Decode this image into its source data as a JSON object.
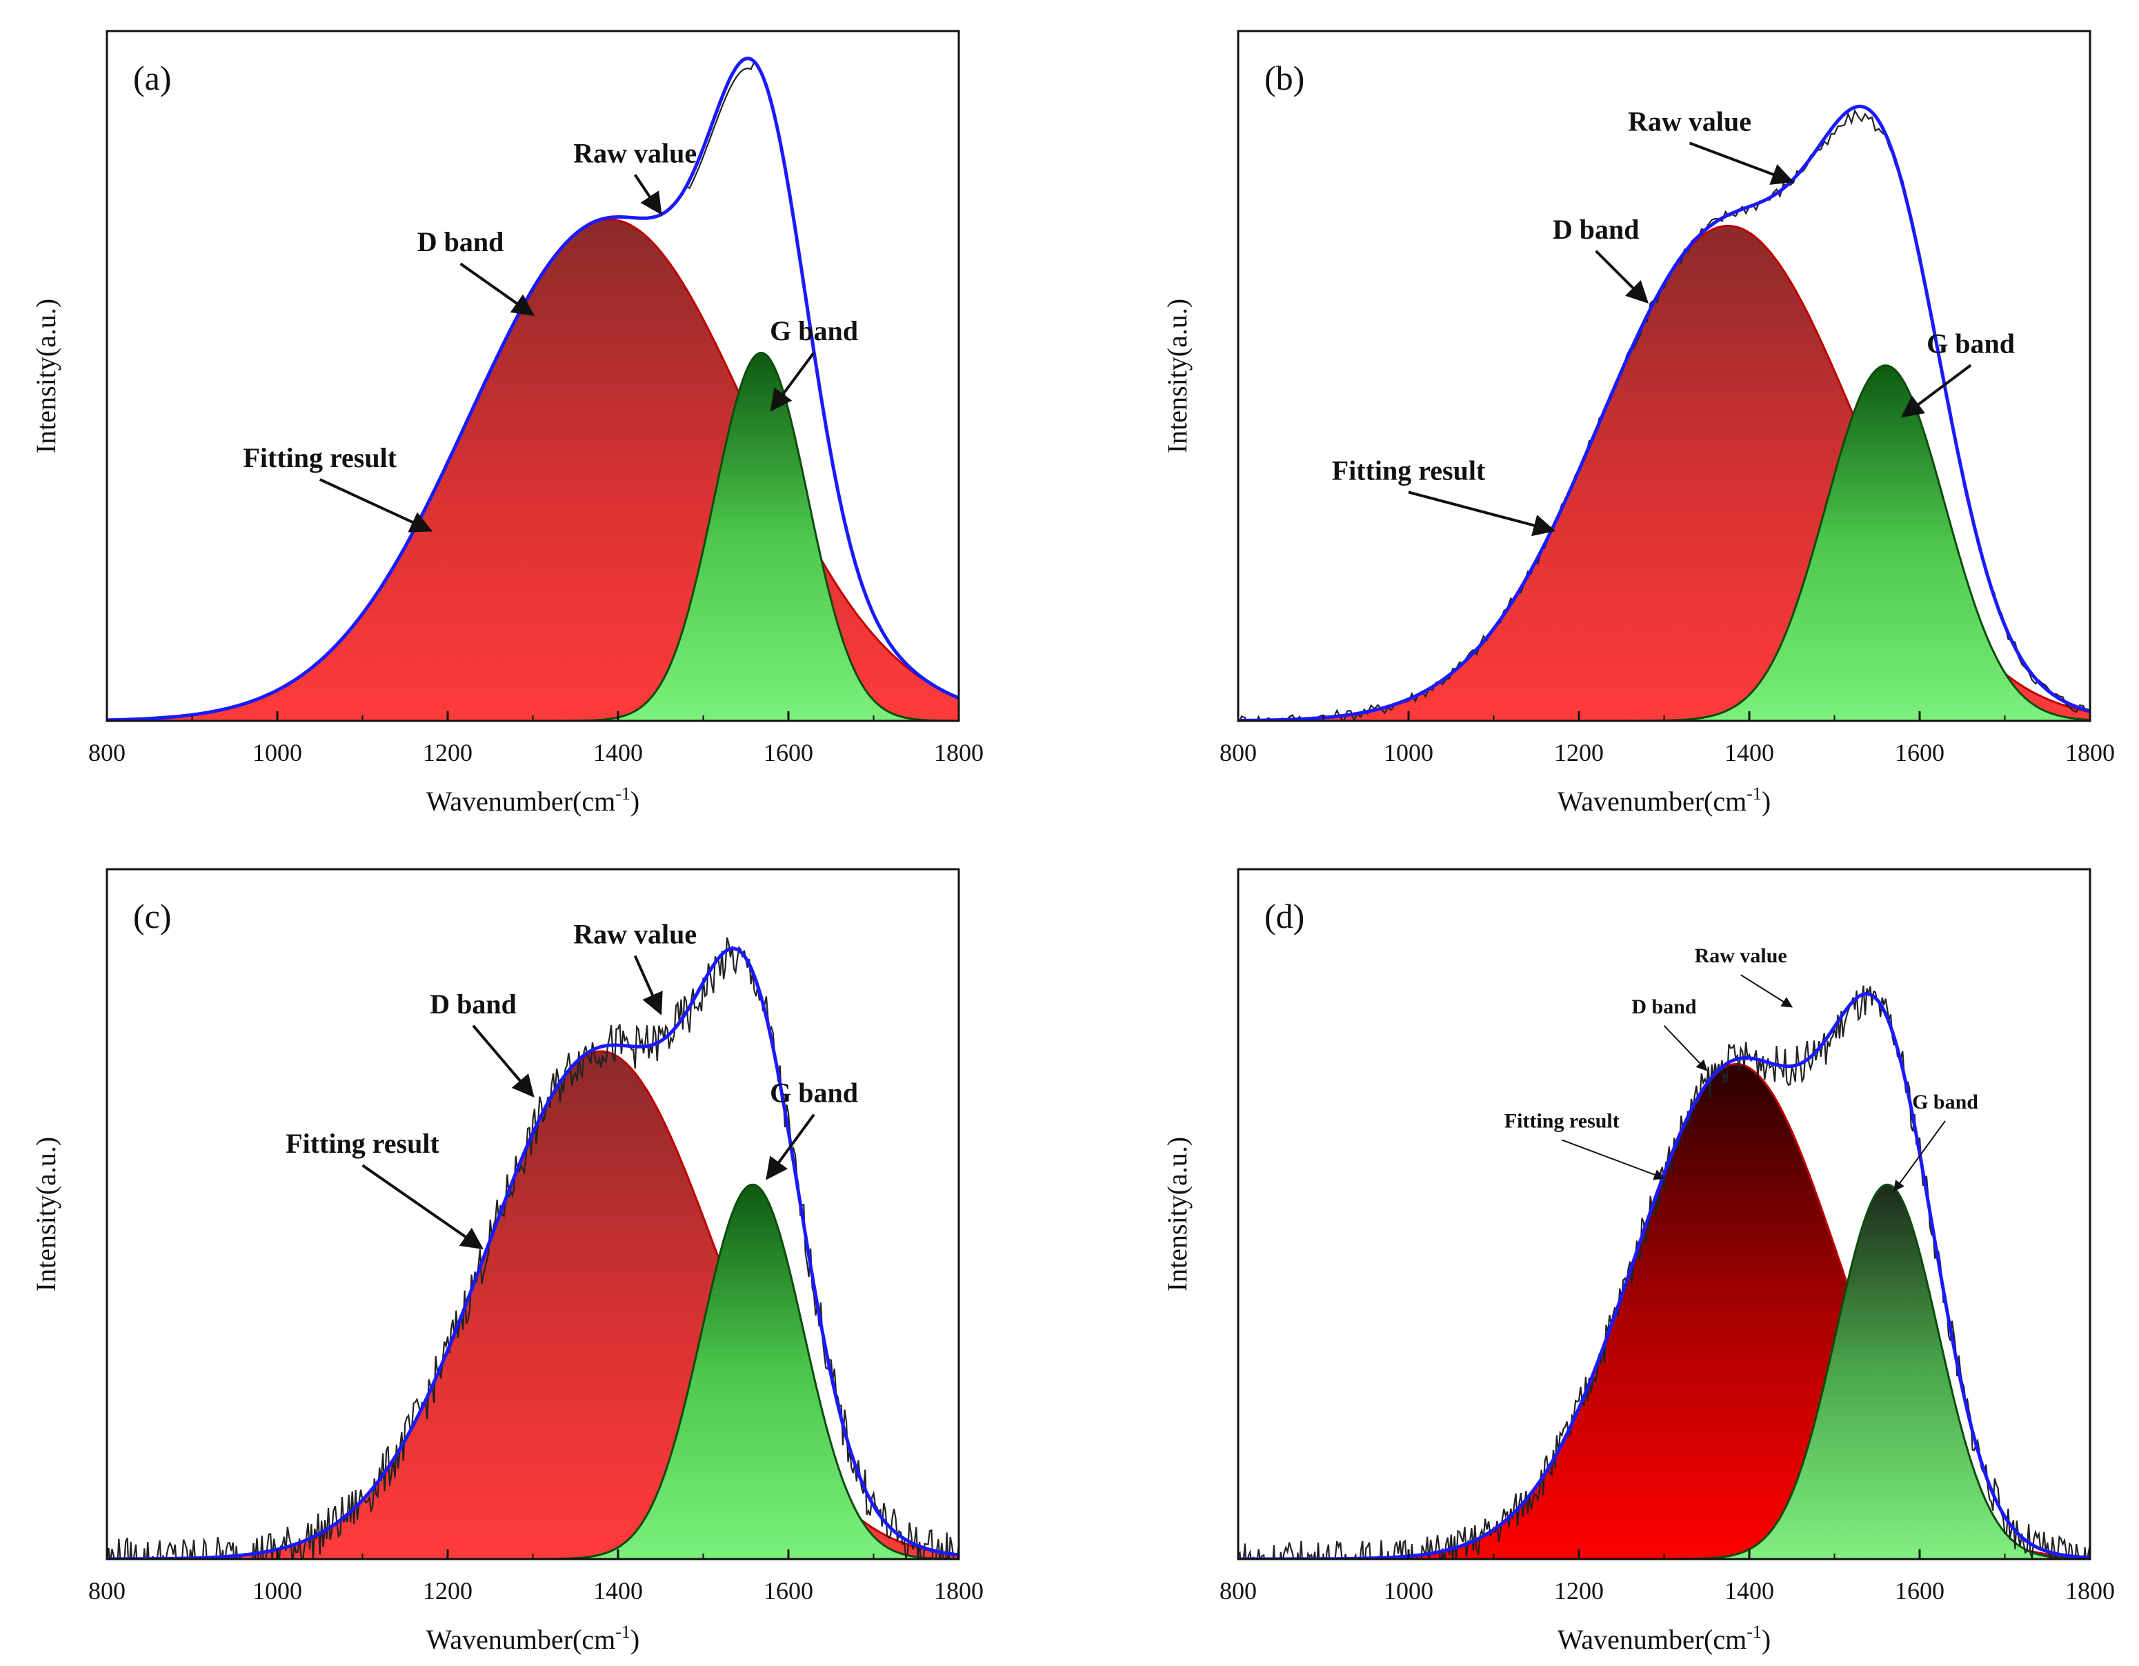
{
  "chart_data": [
    {
      "panel_label": "(a)",
      "type": "line",
      "xlabel": "Wavenumber(cm",
      "xlabel_sup": "-1",
      "xlabel_tail": ")",
      "ylabel": "Intensity(a.u.)",
      "xlim": [
        800,
        1800
      ],
      "xticks": [
        "800",
        "1000",
        "1200",
        "1400",
        "1600",
        "1800"
      ],
      "ylim": [
        0,
        1.0
      ],
      "noise": 0.0,
      "baseline_offset": 0.0,
      "series": [
        {
          "name": "D band",
          "type": "gaussian",
          "center": 1390,
          "sigma": 165,
          "amplitude": 0.79,
          "color": "#e8231f"
        },
        {
          "name": "G band",
          "type": "gaussian",
          "center": 1568,
          "sigma": 55,
          "amplitude": 0.58,
          "color": "#2db52d"
        },
        {
          "name": "Fitting result",
          "type": "sum",
          "color": "#1a1aff"
        },
        {
          "name": "Raw value",
          "type": "raw",
          "color": "#222222"
        }
      ],
      "annotations": [
        {
          "text": "Raw value",
          "x": 1420,
          "y": 0.88,
          "arrow_to_x": 1450,
          "arrow_to_y": 0.8
        },
        {
          "text": "D band",
          "x": 1215,
          "y": 0.74,
          "arrow_to_x": 1300,
          "arrow_to_y": 0.64
        },
        {
          "text": "G band",
          "x": 1630,
          "y": 0.6,
          "arrow_to_x": 1580,
          "arrow_to_y": 0.49
        },
        {
          "text": "Fitting result",
          "x": 1050,
          "y": 0.4,
          "arrow_to_x": 1180,
          "arrow_to_y": 0.3
        }
      ]
    },
    {
      "panel_label": "(b)",
      "type": "line",
      "xlabel": "Wavenumber(cm",
      "xlabel_sup": "-1",
      "xlabel_tail": ")",
      "ylabel": "Intensity(a.u.)",
      "xlim": [
        800,
        1800
      ],
      "xticks": [
        "800",
        "1000",
        "1200",
        "1400",
        "1600",
        "1800"
      ],
      "ylim": [
        0,
        1.0
      ],
      "noise": 0.01,
      "baseline_offset": 0.0,
      "series": [
        {
          "name": "D band",
          "type": "gaussian",
          "center": 1375,
          "sigma": 150,
          "amplitude": 0.78,
          "color": "#e8231f"
        },
        {
          "name": "G band",
          "type": "gaussian",
          "center": 1560,
          "sigma": 70,
          "amplitude": 0.56,
          "color": "#2db52d"
        },
        {
          "name": "Fitting result",
          "type": "sum",
          "color": "#1a1aff"
        },
        {
          "name": "Raw value",
          "type": "raw",
          "color": "#222222"
        }
      ],
      "annotations": [
        {
          "text": "Raw value",
          "x": 1330,
          "y": 0.93,
          "arrow_to_x": 1450,
          "arrow_to_y": 0.85
        },
        {
          "text": "D band",
          "x": 1220,
          "y": 0.76,
          "arrow_to_x": 1280,
          "arrow_to_y": 0.66
        },
        {
          "text": "G band",
          "x": 1660,
          "y": 0.58,
          "arrow_to_x": 1580,
          "arrow_to_y": 0.48
        },
        {
          "text": "Fitting result",
          "x": 1000,
          "y": 0.38,
          "arrow_to_x": 1170,
          "arrow_to_y": 0.3
        }
      ]
    },
    {
      "panel_label": "(c)",
      "type": "line",
      "xlabel": "Wavenumber(cm",
      "xlabel_sup": "-1",
      "xlabel_tail": ")",
      "ylabel": "Intensity(a.u.)",
      "xlim": [
        800,
        1800
      ],
      "xticks": [
        "800",
        "1000",
        "1200",
        "1400",
        "1600",
        "1800"
      ],
      "ylim": [
        0,
        1.0
      ],
      "noise": 0.035,
      "baseline_offset": 0.0,
      "series": [
        {
          "name": "D band",
          "type": "gaussian",
          "center": 1380,
          "sigma": 135,
          "amplitude": 0.8,
          "color": "#e8231f"
        },
        {
          "name": "G band",
          "type": "gaussian",
          "center": 1558,
          "sigma": 60,
          "amplitude": 0.59,
          "color": "#2db52d"
        },
        {
          "name": "Fitting result",
          "type": "sum",
          "color": "#1a1aff"
        },
        {
          "name": "Raw value",
          "type": "raw",
          "color": "#222222"
        }
      ],
      "annotations": [
        {
          "text": "Raw value",
          "x": 1420,
          "y": 0.97,
          "arrow_to_x": 1450,
          "arrow_to_y": 0.86
        },
        {
          "text": "D band",
          "x": 1230,
          "y": 0.86,
          "arrow_to_x": 1300,
          "arrow_to_y": 0.73
        },
        {
          "text": "G band",
          "x": 1630,
          "y": 0.72,
          "arrow_to_x": 1575,
          "arrow_to_y": 0.6
        },
        {
          "text": "Fitting result",
          "x": 1100,
          "y": 0.64,
          "arrow_to_x": 1240,
          "arrow_to_y": 0.49
        }
      ]
    },
    {
      "panel_label": "(d)",
      "type": "line",
      "xlabel": "Wavenumber(cm",
      "xlabel_sup": "-1",
      "xlabel_tail": ")",
      "ylabel": "Intensity(a.u.)",
      "xlim": [
        800,
        1800
      ],
      "xticks": [
        "800",
        "1000",
        "1200",
        "1400",
        "1600",
        "1800"
      ],
      "ylim": [
        0,
        1.0
      ],
      "noise": 0.03,
      "baseline_offset": 0.0,
      "small_annotations": true,
      "series": [
        {
          "name": "D band",
          "type": "gaussian",
          "center": 1385,
          "sigma": 120,
          "amplitude": 0.78,
          "color": "#e00000"
        },
        {
          "name": "G band",
          "type": "gaussian",
          "center": 1562,
          "sigma": 60,
          "amplitude": 0.59,
          "color": "#2db52d"
        },
        {
          "name": "Fitting result",
          "type": "sum",
          "color": "#1a1aff"
        },
        {
          "name": "Raw value",
          "type": "raw",
          "color": "#222222"
        }
      ],
      "annotations": [
        {
          "text": "Raw value",
          "x": 1390,
          "y": 0.94,
          "arrow_to_x": 1450,
          "arrow_to_y": 0.87
        },
        {
          "text": "D band",
          "x": 1300,
          "y": 0.86,
          "arrow_to_x": 1350,
          "arrow_to_y": 0.77
        },
        {
          "text": "G band",
          "x": 1630,
          "y": 0.71,
          "arrow_to_x": 1570,
          "arrow_to_y": 0.58
        },
        {
          "text": "Fitting result",
          "x": 1180,
          "y": 0.68,
          "arrow_to_x": 1300,
          "arrow_to_y": 0.6
        }
      ]
    }
  ]
}
